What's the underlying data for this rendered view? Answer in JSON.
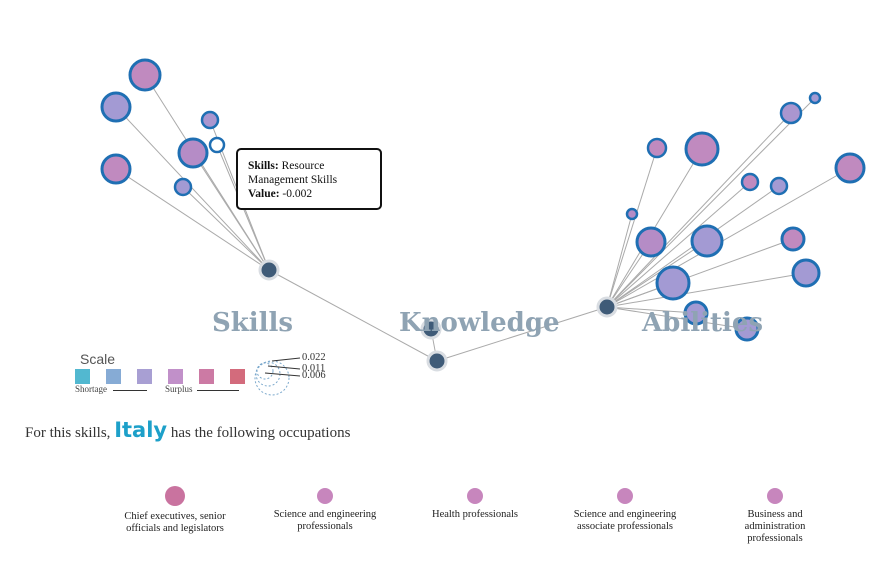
{
  "categories": {
    "skills": "Skills",
    "knowledge": "Knowledge",
    "abilities": "Abilities"
  },
  "tooltip": {
    "key1": "Skills:",
    "value1": "Resource Management Skills",
    "key2": "Value:",
    "value2": "-0.002"
  },
  "scale": {
    "title": "Scale",
    "shortage_label": "Shortage",
    "surplus_label": "Surplus",
    "swatches": [
      "#52b8d0",
      "#86abd5",
      "#a89fd3",
      "#c190c9",
      "#cc7aa4",
      "#d36b7c"
    ],
    "sizes": [
      "0.022",
      "0.011",
      "0.006"
    ]
  },
  "occupations_section": {
    "prefix": "For this skills,",
    "country": "Italy",
    "suffix": "has the following occupations",
    "items": [
      {
        "label": "Chief executives, senior officials and legislators",
        "size": "large",
        "color": "#c9739f"
      },
      {
        "label": "Science and engineering professionals",
        "size": "small",
        "color": "#c786bd"
      },
      {
        "label": "Health professionals",
        "size": "small",
        "color": "#c786bd"
      },
      {
        "label": "Science and engineering associate professionals",
        "size": "small",
        "color": "#c786bd"
      },
      {
        "label": "Business and administration professionals",
        "size": "small",
        "color": "#c786bd"
      }
    ]
  },
  "colors": {
    "hub": "#3f5b78",
    "stroke": "#1f6fb3",
    "link": "#aaaaaa"
  }
}
